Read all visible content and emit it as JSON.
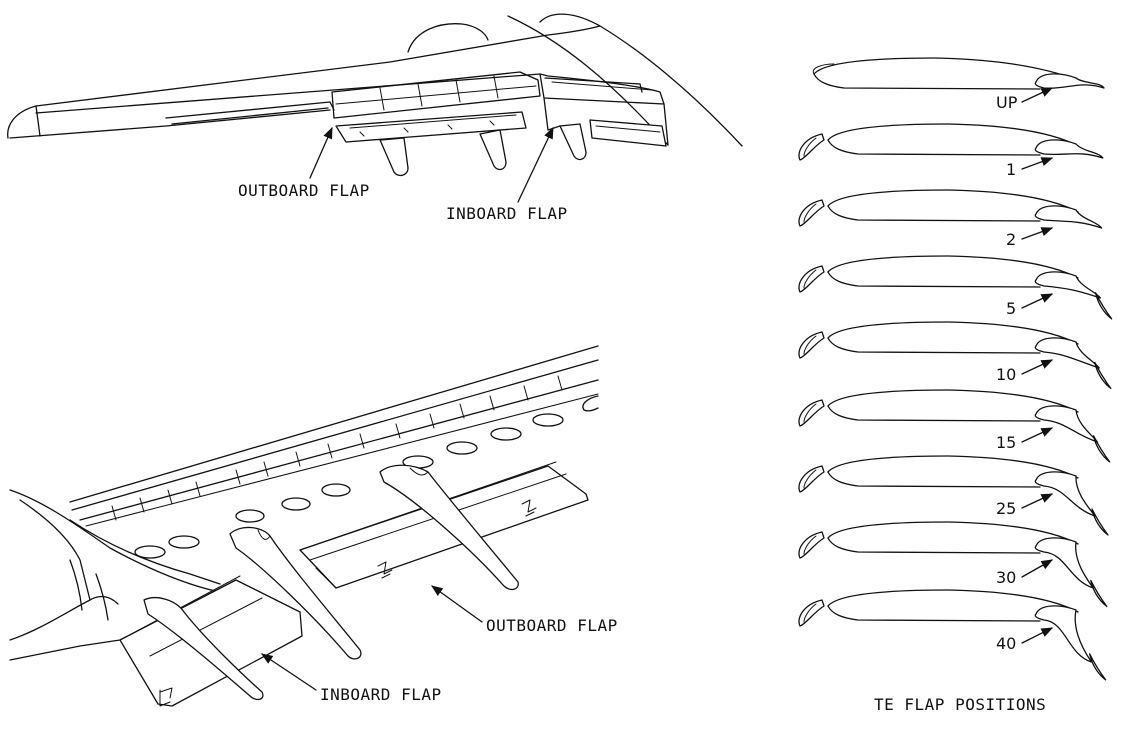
{
  "top_view": {
    "outboard_label": "OUTBOARD FLAP",
    "inboard_label": "INBOARD FLAP"
  },
  "bottom_view": {
    "outboard_label": "OUTBOARD FLAP",
    "inboard_label": "INBOARD FLAP"
  },
  "positions": {
    "caption": "TE FLAP POSITIONS",
    "settings": [
      "UP",
      "1",
      "2",
      "5",
      "10",
      "15",
      "25",
      "30",
      "40"
    ]
  }
}
